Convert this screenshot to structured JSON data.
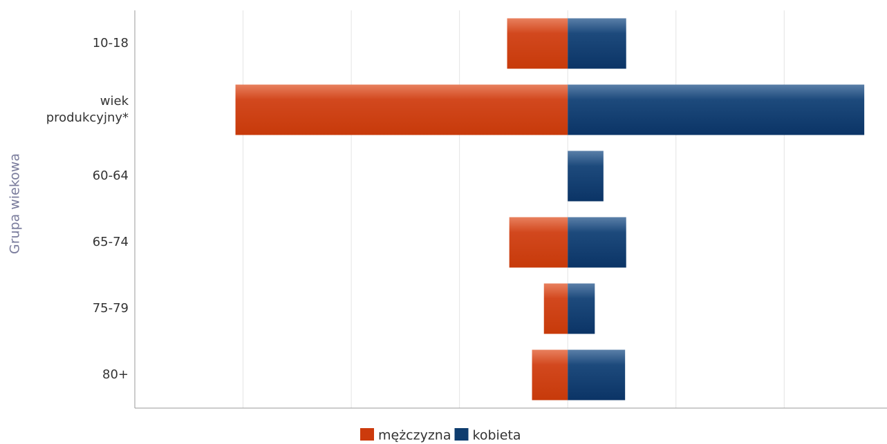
{
  "chart_data": {
    "type": "bar",
    "orientation": "horizontal",
    "stacked": true,
    "y_axis_label": "Grupa wiekowa",
    "categories": [
      "10-18",
      "wiek produkcyjny*",
      "60-64",
      "65-74",
      "75-79",
      "80+"
    ],
    "series": [
      {
        "name": "mężczyzna",
        "color": "#cc3a0c",
        "values": [
          -5.6,
          -30.7,
          0,
          -5.4,
          -2.2,
          -3.3
        ]
      },
      {
        "name": "kobieta",
        "color": "#0e3c6e",
        "values": [
          5.4,
          27.4,
          3.3,
          5.4,
          2.5,
          5.3
        ]
      }
    ],
    "xlim": [
      -40,
      29.5
    ],
    "xticks": [
      -30,
      -20,
      -10,
      0,
      10,
      20
    ],
    "grid": true
  }
}
